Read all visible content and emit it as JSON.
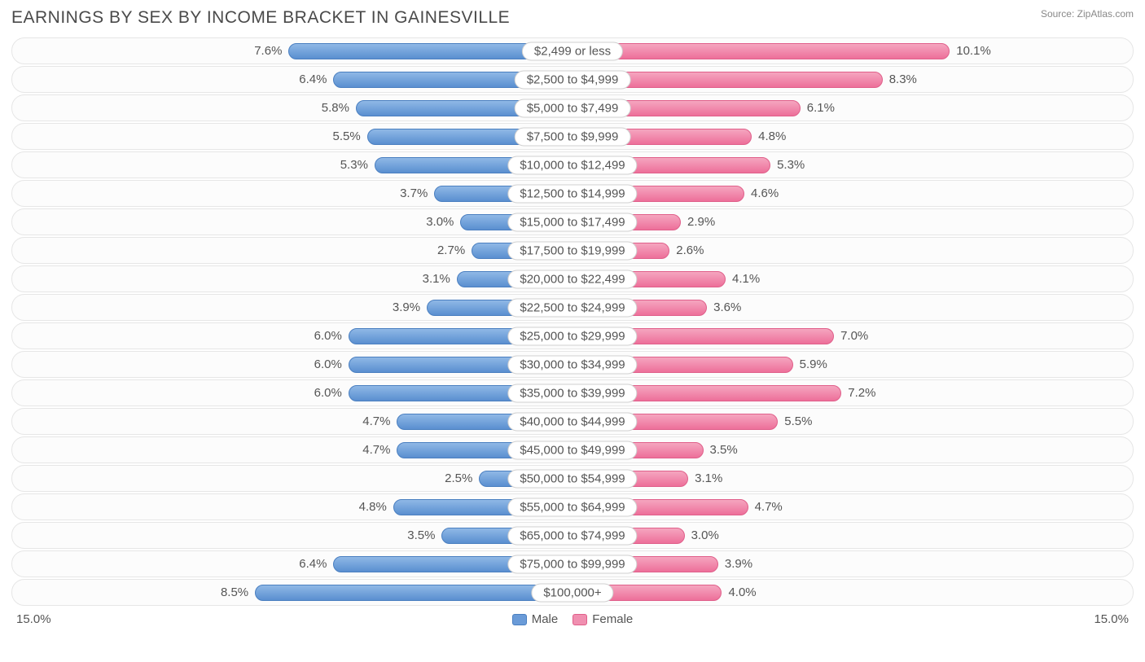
{
  "title": "EARNINGS BY SEX BY INCOME BRACKET IN GAINESVILLE",
  "source": "Source: ZipAtlas.com",
  "axis_max": 15.0,
  "axis_left_label": "15.0%",
  "axis_right_label": "15.0%",
  "legend": {
    "male": "Male",
    "female": "Female"
  },
  "colors": {
    "male_bar": "#6a9bd8",
    "female_bar": "#f08fb0",
    "row_bg": "#fcfcfc",
    "row_border": "#e6e6e6",
    "text": "#555555",
    "title_text": "#4a4a4a",
    "source_text": "#888888"
  },
  "rows": [
    {
      "category": "$2,499 or less",
      "male": 7.6,
      "female": 10.1
    },
    {
      "category": "$2,500 to $4,999",
      "male": 6.4,
      "female": 8.3
    },
    {
      "category": "$5,000 to $7,499",
      "male": 5.8,
      "female": 6.1
    },
    {
      "category": "$7,500 to $9,999",
      "male": 5.5,
      "female": 4.8
    },
    {
      "category": "$10,000 to $12,499",
      "male": 5.3,
      "female": 5.3
    },
    {
      "category": "$12,500 to $14,999",
      "male": 3.7,
      "female": 4.6
    },
    {
      "category": "$15,000 to $17,499",
      "male": 3.0,
      "female": 2.9
    },
    {
      "category": "$17,500 to $19,999",
      "male": 2.7,
      "female": 2.6
    },
    {
      "category": "$20,000 to $22,499",
      "male": 3.1,
      "female": 4.1
    },
    {
      "category": "$22,500 to $24,999",
      "male": 3.9,
      "female": 3.6
    },
    {
      "category": "$25,000 to $29,999",
      "male": 6.0,
      "female": 7.0
    },
    {
      "category": "$30,000 to $34,999",
      "male": 6.0,
      "female": 5.9
    },
    {
      "category": "$35,000 to $39,999",
      "male": 6.0,
      "female": 7.2
    },
    {
      "category": "$40,000 to $44,999",
      "male": 4.7,
      "female": 5.5
    },
    {
      "category": "$45,000 to $49,999",
      "male": 4.7,
      "female": 3.5
    },
    {
      "category": "$50,000 to $54,999",
      "male": 2.5,
      "female": 3.1
    },
    {
      "category": "$55,000 to $64,999",
      "male": 4.8,
      "female": 4.7
    },
    {
      "category": "$65,000 to $74,999",
      "male": 3.5,
      "female": 3.0
    },
    {
      "category": "$75,000 to $99,999",
      "male": 6.4,
      "female": 3.9
    },
    {
      "category": "$100,000+",
      "male": 8.5,
      "female": 4.0
    }
  ]
}
